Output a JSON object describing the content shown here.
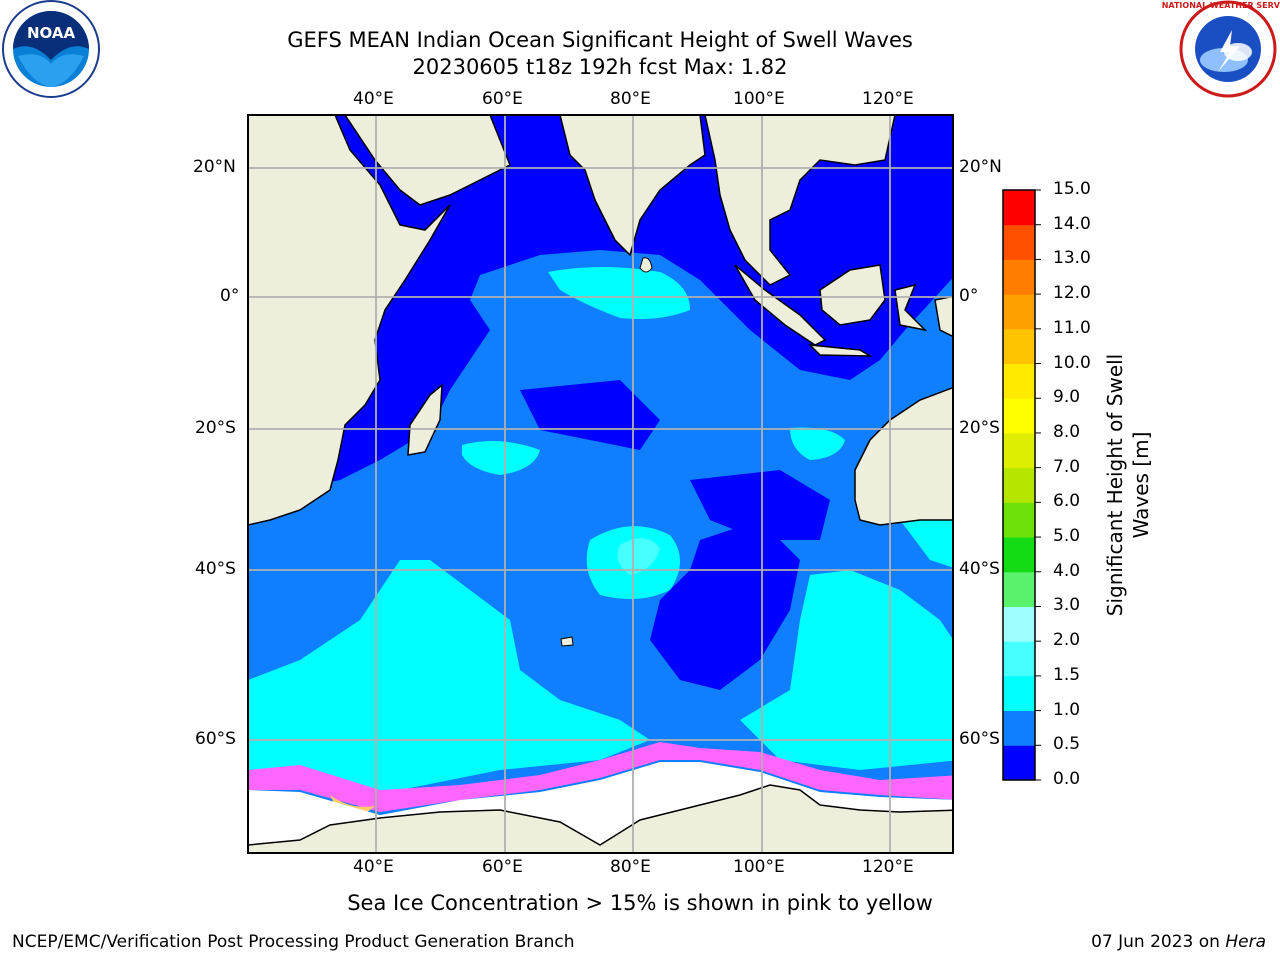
{
  "title_line1": "GEFS MEAN Indian Ocean Significant Height of Swell Waves",
  "title_line2": "20230605 t18z 192h fcst   Max: 1.82",
  "lon_labels": [
    "40°E",
    "60°E",
    "80°E",
    "100°E",
    "120°E"
  ],
  "lat_labels": [
    "20°N",
    "0°",
    "20°S",
    "40°S",
    "60°S"
  ],
  "colorbar": {
    "label_line1": "Significant Height of Swell",
    "label_line2": "Waves [m]",
    "ticks": [
      "0.0",
      "0.5",
      "1.0",
      "1.5",
      "2.0",
      "3.0",
      "4.0",
      "5.0",
      "6.0",
      "7.0",
      "8.0",
      "9.0",
      "10.0",
      "11.0",
      "12.0",
      "13.0",
      "14.0",
      "15.0"
    ],
    "colors": [
      "#0000ff",
      "#0f7fff",
      "#00ffff",
      "#46ffff",
      "#9fffff",
      "#5af26c",
      "#14dc14",
      "#6ee10a",
      "#b4e600",
      "#ddee00",
      "#ffff00",
      "#ffea00",
      "#ffc300",
      "#ff9f00",
      "#ff7d00",
      "#ff5000",
      "#ff0000"
    ]
  },
  "caption": "Sea Ice Concentration > 15% is shown in pink to yellow",
  "footer_left": "NCEP/EMC/Verification Post Processing Product Generation Branch",
  "footer_date": "07 Jun 2023 on ",
  "footer_host": "Hera",
  "logo_left_text": "NOAA",
  "logo_left_ring": "NATIONAL OCEANIC AND ATMOSPHERIC ADMINISTRATION · U.S. DEPARTMENT OF COMMERCE",
  "logo_right_ring": "NATIONAL WEATHER SERVICE"
}
